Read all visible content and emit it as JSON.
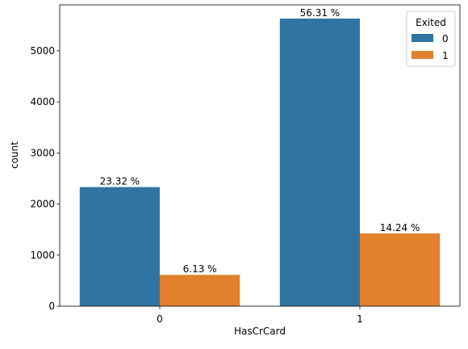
{
  "chart_data": {
    "type": "bar",
    "xlabel": "HasCrCard",
    "ylabel": "count",
    "categories": [
      "0",
      "1"
    ],
    "ylim": [
      0,
      5900
    ],
    "yticks": [
      0,
      1000,
      2000,
      3000,
      4000,
      5000
    ],
    "legend": {
      "title": "Exited",
      "placement": "upper right"
    },
    "series": [
      {
        "name": "0",
        "color": "#3274a1",
        "values": [
          2332,
          5631
        ],
        "labels": [
          "23.32 %",
          "56.31 %"
        ]
      },
      {
        "name": "1",
        "color": "#e1812c",
        "values": [
          613,
          1424
        ],
        "labels": [
          "6.13 %",
          "14.24 %"
        ]
      }
    ]
  }
}
